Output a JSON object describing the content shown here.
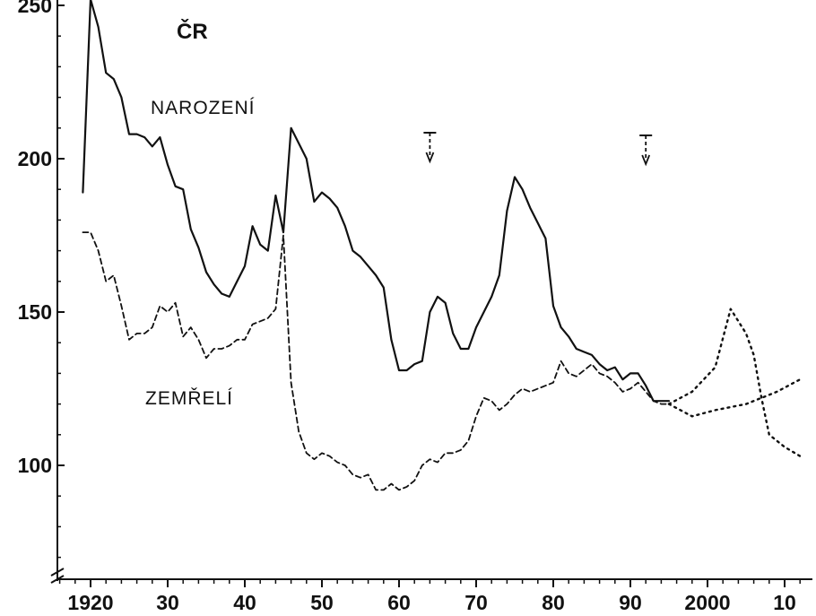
{
  "chart_data": {
    "type": "line",
    "title": "ČR",
    "xlabel": "",
    "ylabel": "",
    "xlim": [
      1915,
      2013
    ],
    "ylim": [
      65,
      250
    ],
    "grid": false,
    "x_ticks": [
      1920,
      1930,
      1940,
      1950,
      1960,
      1970,
      1980,
      1990,
      2000,
      2010
    ],
    "x_tick_labels": [
      "1920",
      "30",
      "40",
      "50",
      "60",
      "70",
      "80",
      "90",
      "2000",
      "10"
    ],
    "y_ticks": [
      100,
      150,
      200,
      250
    ],
    "y_tick_labels": [
      "100",
      "150",
      "200",
      "250"
    ],
    "series": [
      {
        "name": "NAROZENÍ",
        "style": "solid",
        "x": [
          1919,
          1920,
          1921,
          1922,
          1923,
          1924,
          1925,
          1926,
          1927,
          1928,
          1929,
          1930,
          1931,
          1932,
          1933,
          1934,
          1935,
          1936,
          1937,
          1938,
          1939,
          1940,
          1941,
          1942,
          1943,
          1944,
          1945,
          1946,
          1947,
          1948,
          1949,
          1950,
          1951,
          1952,
          1953,
          1954,
          1955,
          1956,
          1957,
          1958,
          1959,
          1960,
          1961,
          1962,
          1963,
          1964,
          1965,
          1966,
          1967,
          1968,
          1969,
          1970,
          1971,
          1972,
          1973,
          1974,
          1975,
          1976,
          1977,
          1978,
          1979,
          1980,
          1981,
          1982,
          1983,
          1984,
          1985,
          1986,
          1987,
          1988,
          1989,
          1990,
          1991,
          1992,
          1993,
          1994,
          1995
        ],
        "values": [
          189,
          252,
          243,
          228,
          226,
          220,
          208,
          208,
          207,
          204,
          207,
          198,
          191,
          190,
          177,
          171,
          163,
          159,
          156,
          155,
          160,
          165,
          178,
          172,
          170,
          188,
          176,
          210,
          205,
          200,
          186,
          189,
          187,
          184,
          178,
          170,
          168,
          165,
          162,
          158,
          141,
          131,
          131,
          133,
          134,
          150,
          155,
          153,
          143,
          138,
          138,
          145,
          150,
          155,
          162,
          183,
          194,
          190,
          184,
          179,
          174,
          152,
          145,
          142,
          138,
          137,
          136,
          133,
          131,
          132,
          128,
          130,
          130,
          126,
          121,
          121,
          121
        ]
      },
      {
        "name": "ZEMŘELÍ",
        "style": "dashed",
        "x": [
          1919,
          1920,
          1921,
          1922,
          1923,
          1924,
          1925,
          1926,
          1927,
          1928,
          1929,
          1930,
          1931,
          1932,
          1933,
          1934,
          1935,
          1936,
          1937,
          1938,
          1939,
          1940,
          1941,
          1942,
          1943,
          1944,
          1945,
          1946,
          1947,
          1948,
          1949,
          1950,
          1951,
          1952,
          1953,
          1954,
          1955,
          1956,
          1957,
          1958,
          1959,
          1960,
          1961,
          1962,
          1963,
          1964,
          1965,
          1966,
          1967,
          1968,
          1969,
          1970,
          1971,
          1972,
          1973,
          1974,
          1975,
          1976,
          1977,
          1978,
          1979,
          1980,
          1981,
          1982,
          1983,
          1984,
          1985,
          1986,
          1987,
          1988,
          1989,
          1990,
          1991,
          1992,
          1993,
          1994,
          1995
        ],
        "values": [
          176,
          176,
          170,
          160,
          162,
          152,
          141,
          143,
          143,
          145,
          152,
          150,
          153,
          142,
          145,
          141,
          135,
          138,
          138,
          139,
          141,
          141,
          146,
          147,
          148,
          151,
          175,
          127,
          111,
          104,
          102,
          104,
          103,
          101,
          100,
          97,
          96,
          97,
          92,
          92,
          94,
          92,
          93,
          95,
          100,
          102,
          101,
          104,
          104,
          105,
          108,
          116,
          122,
          121,
          118,
          120,
          123,
          125,
          124,
          125,
          126,
          127,
          134,
          130,
          129,
          131,
          133,
          130,
          129,
          127,
          124,
          125,
          127,
          124,
          121,
          120,
          120
        ]
      },
      {
        "name": "",
        "style": "dotted",
        "x": [
          1995,
          1998,
          2001,
          2003,
          2005,
          2006,
          2007,
          2008,
          2010,
          2012
        ],
        "values": [
          120,
          124,
          132,
          151,
          143,
          136,
          122,
          110,
          106,
          103
        ]
      },
      {
        "name": "",
        "style": "dotted",
        "x": [
          1995,
          1998,
          2001,
          2005,
          2009,
          2012
        ],
        "values": [
          120,
          116,
          118,
          120,
          124,
          128
        ]
      }
    ],
    "annotations": [
      {
        "type": "arrow-down",
        "x": 1964
      },
      {
        "type": "arrow-down",
        "x": 1992
      }
    ],
    "legend": "inline labels"
  }
}
